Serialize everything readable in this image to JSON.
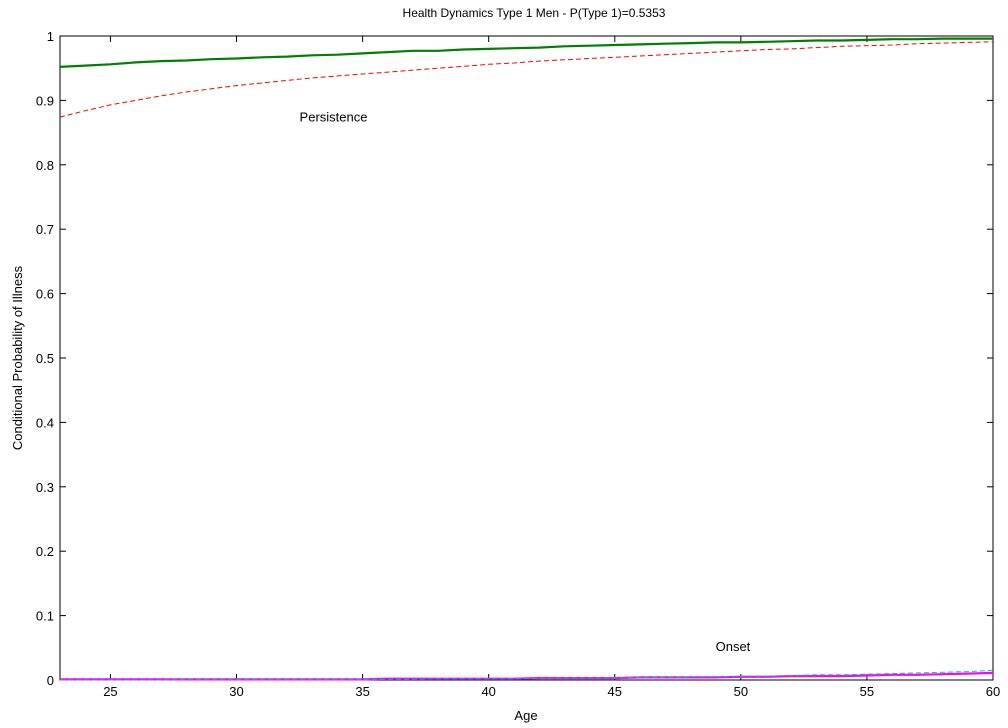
{
  "chart_data": {
    "type": "line",
    "title": "Health Dynamics Type 1 Men - P(Type 1)=0.5353",
    "xlabel": "Age",
    "ylabel": "Conditional Probability of Illness",
    "xlim": [
      23,
      60
    ],
    "ylim": [
      0,
      1
    ],
    "grid": false,
    "xticks": [
      25,
      30,
      35,
      40,
      45,
      50,
      55,
      60
    ],
    "yticks": [
      0,
      0.1,
      0.2,
      0.3,
      0.4,
      0.5,
      0.6,
      0.7,
      0.8,
      0.9,
      1
    ],
    "x": [
      23,
      24,
      25,
      26,
      27,
      28,
      29,
      30,
      31,
      32,
      33,
      34,
      35,
      36,
      37,
      38,
      39,
      40,
      41,
      42,
      43,
      44,
      45,
      46,
      47,
      48,
      49,
      50,
      51,
      52,
      53,
      54,
      55,
      56,
      57,
      58,
      59,
      60
    ],
    "series": [
      {
        "color": "#007f00",
        "style": "solid",
        "width": 2.2,
        "values": [
          0.952,
          0.954,
          0.956,
          0.959,
          0.961,
          0.962,
          0.964,
          0.965,
          0.967,
          0.968,
          0.97,
          0.971,
          0.973,
          0.975,
          0.977,
          0.977,
          0.979,
          0.98,
          0.981,
          0.982,
          0.984,
          0.985,
          0.986,
          0.987,
          0.988,
          0.989,
          0.99,
          0.99,
          0.991,
          0.992,
          0.993,
          0.993,
          0.994,
          0.995,
          0.995,
          0.996,
          0.996,
          0.996
        ]
      },
      {
        "color": "#ff0000",
        "style": "dashed",
        "width": 1,
        "values": [
          0.874,
          0.884,
          0.893,
          0.9,
          0.907,
          0.913,
          0.918,
          0.923,
          0.927,
          0.931,
          0.935,
          0.938,
          0.941,
          0.944,
          0.947,
          0.95,
          0.953,
          0.956,
          0.958,
          0.961,
          0.963,
          0.965,
          0.967,
          0.969,
          0.971,
          0.973,
          0.975,
          0.977,
          0.979,
          0.98,
          0.982,
          0.984,
          0.985,
          0.986,
          0.988,
          0.989,
          0.99,
          0.991
        ]
      },
      {
        "color": "#ff00ff",
        "style": "solid",
        "width": 2.2,
        "values": [
          0.001,
          0.001,
          0.001,
          0.001,
          0.001,
          0.001,
          0.001,
          0.001,
          0.001,
          0.001,
          0.001,
          0.001,
          0.001,
          0.002,
          0.002,
          0.002,
          0.002,
          0.002,
          0.002,
          0.003,
          0.003,
          0.003,
          0.003,
          0.004,
          0.004,
          0.004,
          0.004,
          0.005,
          0.005,
          0.006,
          0.006,
          0.006,
          0.007,
          0.008,
          0.008,
          0.009,
          0.01,
          0.011
        ]
      },
      {
        "color": "#00bfbf",
        "style": "dashed",
        "width": 1,
        "values": [
          0.0,
          0.0,
          0.0,
          0.0,
          0.0,
          0.001,
          0.001,
          0.001,
          0.001,
          0.001,
          0.001,
          0.001,
          0.001,
          0.001,
          0.001,
          0.002,
          0.002,
          0.002,
          0.002,
          0.002,
          0.003,
          0.003,
          0.003,
          0.004,
          0.004,
          0.005,
          0.005,
          0.006,
          0.006,
          0.007,
          0.008,
          0.008,
          0.009,
          0.01,
          0.011,
          0.012,
          0.013,
          0.015
        ]
      }
    ],
    "annotations": [
      {
        "text": "Persistence",
        "x": 32.5,
        "y": 0.875
      },
      {
        "text": "Onset",
        "x": 49.0,
        "y": 0.053
      }
    ]
  }
}
